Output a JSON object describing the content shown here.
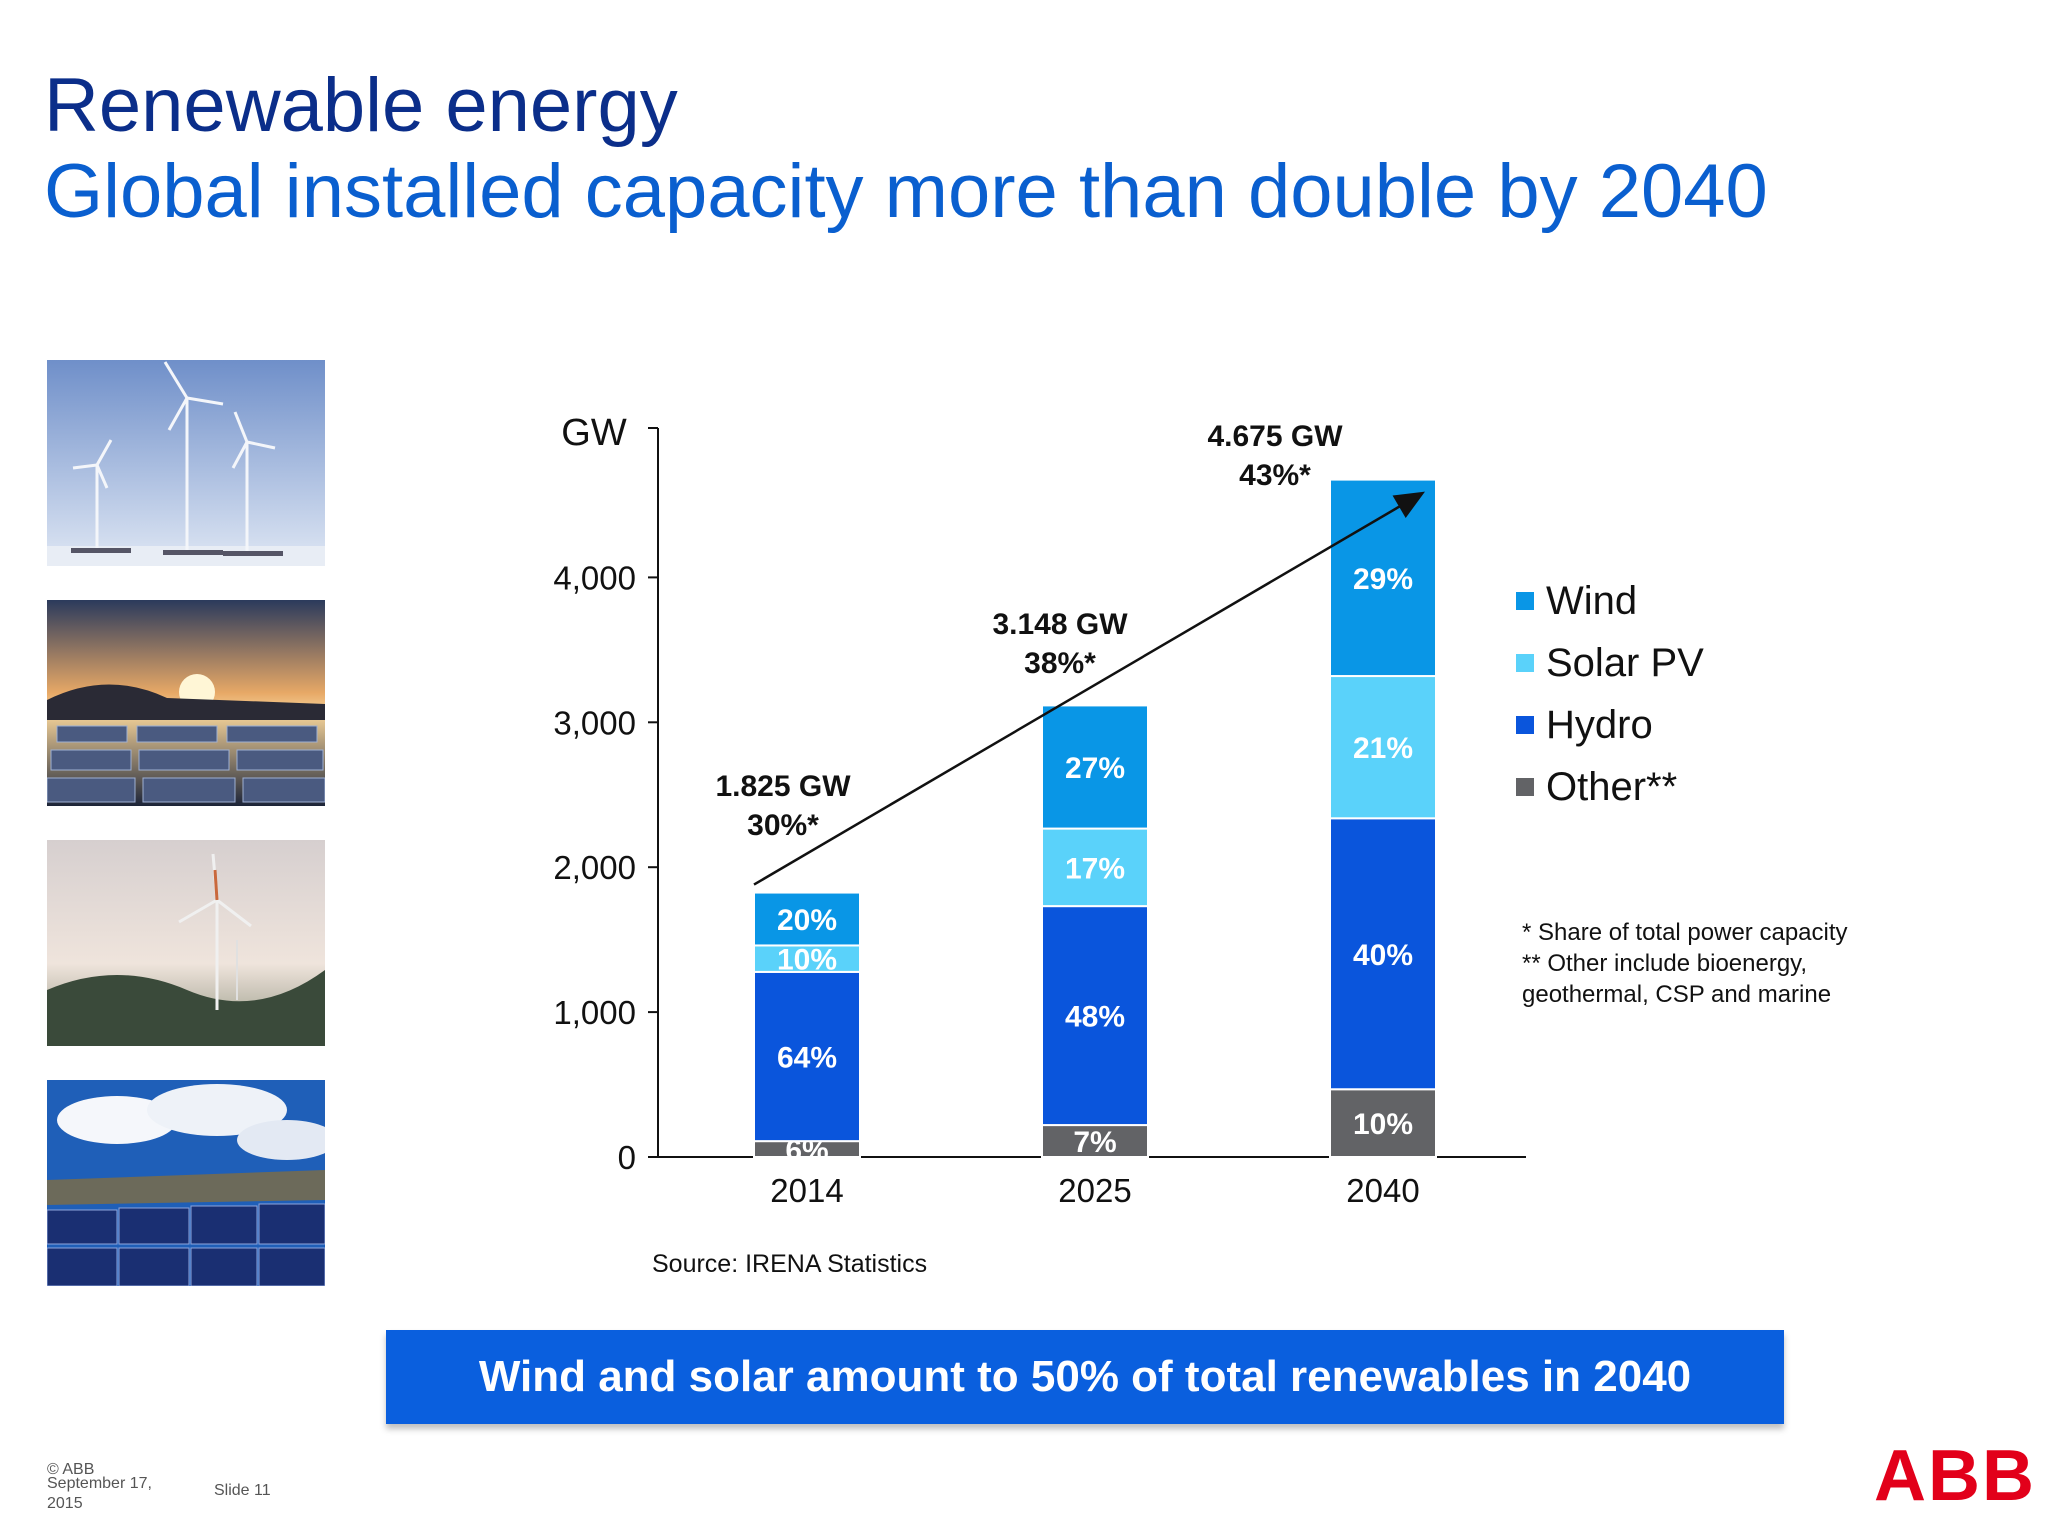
{
  "slide": {
    "title": "Renewable energy",
    "subtitle": "Global installed capacity more than double by 2040",
    "source": "Source: IRENA Statistics",
    "callout": "Wind and solar amount to 50% of total renewables in 2040",
    "notes": [
      "* Share of total power capacity",
      "** Other include bioenergy,",
      "geothermal, CSP and marine"
    ],
    "footer": {
      "copyright": "© ABB",
      "date": "September 17, 2015",
      "slide": "Slide 11"
    },
    "logo": "ABB",
    "photos": [
      "wind-turbines-photo",
      "solar-sunset-photo",
      "wind-turbine-dusk-photo",
      "solar-panels-photo"
    ]
  },
  "chart_data": {
    "type": "bar",
    "stacked": true,
    "ylabel": "GW",
    "ylim": [
      0,
      5000
    ],
    "yticks": [
      0,
      1000,
      2000,
      3000,
      4000
    ],
    "ytick_labels": [
      "0",
      "1,000",
      "2,000",
      "3,000",
      "4,000"
    ],
    "categories": [
      "2014",
      "2025",
      "2040"
    ],
    "totals": [
      1825,
      3148,
      4675
    ],
    "total_labels": [
      "1.825 GW",
      "3.148 GW",
      "4.675 GW"
    ],
    "share_labels": [
      "30%*",
      "38%*",
      "43%*"
    ],
    "series": [
      {
        "name": "Other**",
        "color": "#626366",
        "shares": [
          6,
          7,
          10
        ],
        "labels": [
          "6%",
          "7%",
          "10%"
        ]
      },
      {
        "name": "Hydro",
        "color": "#0a55dc",
        "shares": [
          64,
          48,
          40
        ],
        "labels": [
          "64%",
          "48%",
          "40%"
        ]
      },
      {
        "name": "Solar PV",
        "color": "#5ad2fa",
        "shares": [
          10,
          17,
          21
        ],
        "labels": [
          "10%",
          "17%",
          "21%"
        ]
      },
      {
        "name": "Wind",
        "color": "#0996e6",
        "shares": [
          20,
          27,
          29
        ],
        "labels": [
          "20%",
          "27%",
          "29%"
        ]
      }
    ],
    "legend_order": [
      "Wind",
      "Solar PV",
      "Hydro",
      "Other**"
    ],
    "legend_placement": "right",
    "trend_arrow": true,
    "grid": false
  }
}
